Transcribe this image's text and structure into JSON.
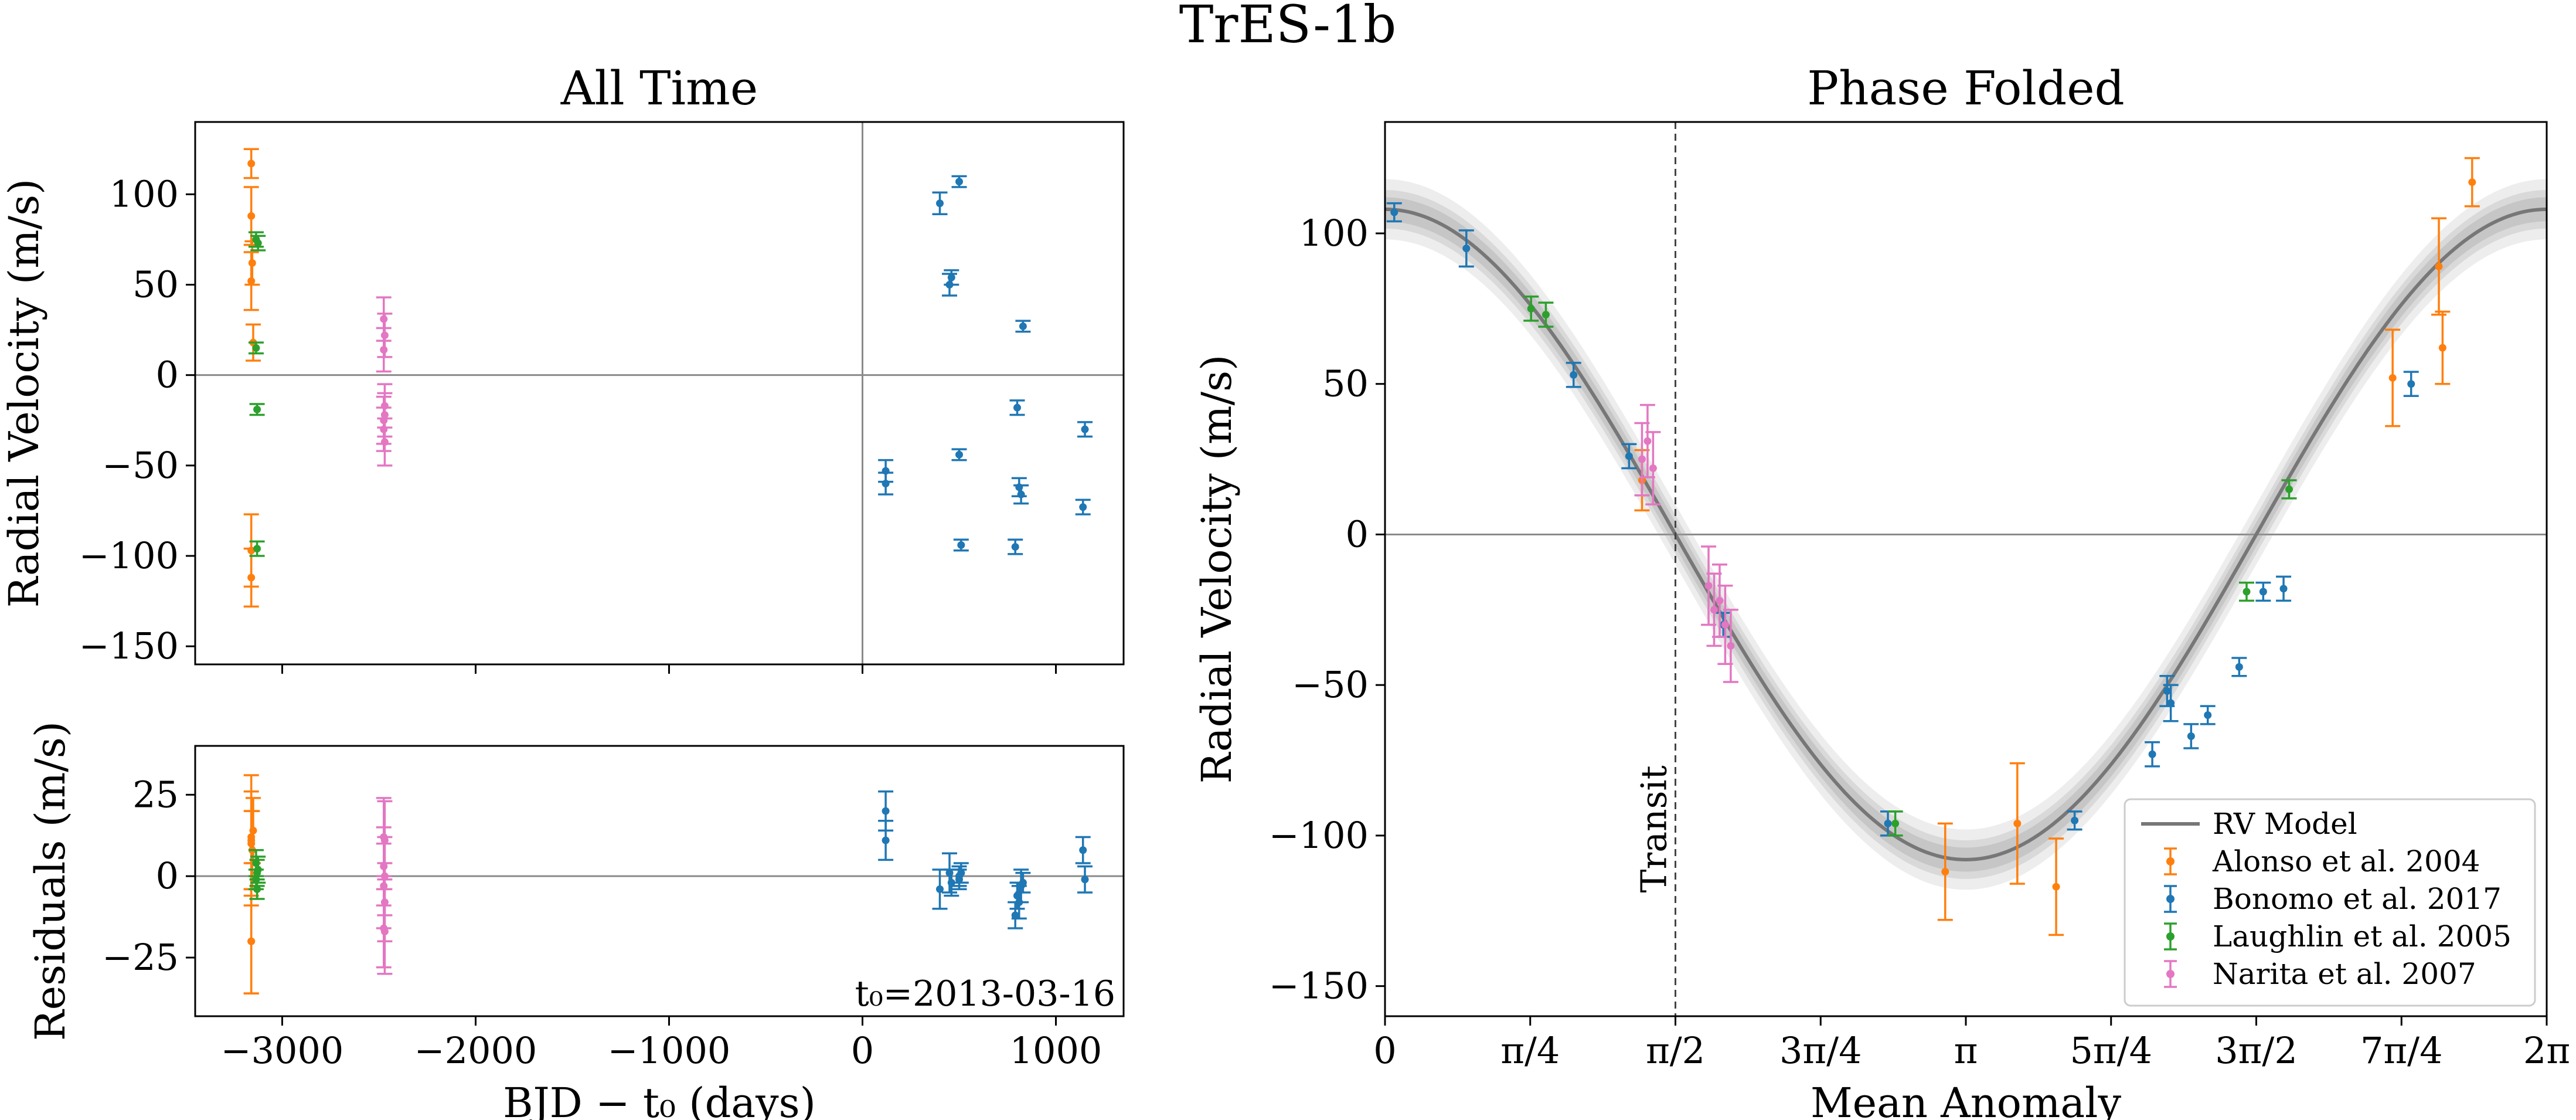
{
  "figure": {
    "title": "TrES-1b"
  },
  "colors": {
    "Alonso et al. 2004": "#ff7f0e",
    "Bonomo et al. 2017": "#1f77b4",
    "Laughlin et al. 2005": "#2ca02c",
    "Narita et al. 2007": "#e377c2",
    "model": "#777777",
    "zero_line": "#8a8a8a",
    "transit_line": "#444444"
  },
  "chart_data": [
    {
      "id": "all_time",
      "type": "scatter",
      "title": "All Time",
      "xlabel": "",
      "ylabel": "Radial Velocity (m/s)",
      "xlim": [
        -3450,
        1350
      ],
      "ylim": [
        -160,
        140
      ],
      "xticks": [
        -3000,
        -2000,
        -1000,
        0,
        1000
      ],
      "xtick_labels": [
        "",
        "",
        "",
        "",
        ""
      ],
      "yticks": [
        -150,
        -100,
        -50,
        0,
        50,
        100
      ],
      "ytick_labels": [
        "−150",
        "−100",
        "−50",
        "0",
        "50",
        "100"
      ],
      "hlines": [
        0
      ],
      "vlines": [
        0
      ],
      "series": [
        {
          "name": "Alonso et al. 2004",
          "x": [
            -3160,
            -3160,
            -3155,
            -3160,
            -3150,
            -3160,
            -3160
          ],
          "y": [
            117,
            88,
            62,
            52,
            18,
            -112,
            -97
          ],
          "yerr": [
            8,
            16,
            12,
            16,
            10,
            16,
            20
          ]
        },
        {
          "name": "Bonomo et al. 2017",
          "x": [
            120,
            120,
            400,
            450,
            460,
            500,
            500,
            510,
            790,
            800,
            810,
            820,
            830,
            1140,
            1150
          ],
          "y": [
            -53,
            -60,
            95,
            50,
            54,
            107,
            -44,
            -94,
            -95,
            -18,
            -62,
            -66,
            27,
            -73,
            -30
          ],
          "yerr": [
            6,
            6,
            6,
            6,
            4,
            3,
            3,
            3,
            4,
            4,
            5,
            5,
            3,
            4,
            4
          ]
        },
        {
          "name": "Laughlin et al. 2005",
          "x": [
            -3135,
            -3125,
            -3135,
            -3130,
            -3130
          ],
          "y": [
            75,
            73,
            15,
            -19,
            -96
          ],
          "yerr": [
            4,
            4,
            3,
            3,
            4
          ]
        },
        {
          "name": "Narita et al. 2007",
          "x": [
            -2475,
            -2470,
            -2475,
            -2470,
            -2475,
            -2470,
            -2475,
            -2470
          ],
          "y": [
            31,
            22,
            14,
            -17,
            -25,
            -22,
            -30,
            -37
          ],
          "yerr": [
            12,
            12,
            12,
            12,
            13,
            12,
            12,
            13
          ]
        }
      ]
    },
    {
      "id": "residuals",
      "type": "scatter",
      "title": "",
      "xlabel": "BJD − t₀ (days)",
      "ylabel": "Residuals (m/s)",
      "xlim": [
        -3450,
        1350
      ],
      "ylim": [
        -43,
        40
      ],
      "xticks": [
        -3000,
        -2000,
        -1000,
        0,
        1000
      ],
      "xtick_labels": [
        "−3000",
        "−2000",
        "−1000",
        "0",
        "1000"
      ],
      "yticks": [
        -25,
        0,
        25
      ],
      "ytick_labels": [
        "−25",
        "0",
        "25"
      ],
      "hlines": [
        0
      ],
      "annotation": "t₀=2013-03-16",
      "series": [
        {
          "name": "Alonso et al. 2004",
          "x": [
            -3160,
            -3160,
            -3155,
            -3160,
            -3150,
            -3160,
            -3160
          ],
          "y": [
            12,
            10,
            8,
            -20,
            14,
            -20,
            11
          ],
          "yerr": [
            8,
            16,
            12,
            16,
            10,
            16,
            20
          ]
        },
        {
          "name": "Bonomo et al. 2017",
          "x": [
            120,
            120,
            400,
            450,
            460,
            500,
            500,
            510,
            790,
            800,
            810,
            820,
            830,
            1140,
            1150
          ],
          "y": [
            20,
            11,
            -4,
            1,
            -2,
            -1,
            0,
            1,
            -12,
            -6,
            -8,
            -3,
            -2,
            8,
            -1
          ],
          "yerr": [
            6,
            6,
            6,
            6,
            4,
            3,
            3,
            3,
            4,
            4,
            5,
            5,
            3,
            4,
            4
          ]
        },
        {
          "name": "Laughlin et al. 2005",
          "x": [
            -3135,
            -3125,
            -3135,
            -3130,
            -3130
          ],
          "y": [
            4,
            2,
            -1,
            -4,
            1
          ],
          "yerr": [
            4,
            4,
            3,
            3,
            4
          ]
        },
        {
          "name": "Narita et al. 2007",
          "x": [
            -2475,
            -2470,
            -2475,
            -2470,
            -2475,
            -2470,
            -2475,
            -2470
          ],
          "y": [
            12,
            11,
            3,
            0,
            -3,
            -8,
            -16,
            -17
          ],
          "yerr": [
            12,
            12,
            12,
            12,
            13,
            12,
            12,
            13
          ]
        }
      ]
    },
    {
      "id": "phase_folded",
      "type": "scatter",
      "title": "Phase Folded",
      "xlabel": "Mean Anomaly",
      "ylabel": "Radial Velocity (m/s)",
      "xlim": [
        0,
        6.2832
      ],
      "ylim": [
        -160,
        137
      ],
      "xticks": [
        0,
        0.7854,
        1.5708,
        2.3562,
        3.1416,
        3.927,
        4.7124,
        5.4978,
        6.2832
      ],
      "xtick_labels": [
        "0",
        "π/4",
        "π/2",
        "3π/4",
        "π",
        "5π/4",
        "3π/2",
        "7π/4",
        "2π"
      ],
      "yticks": [
        -150,
        -100,
        -50,
        0,
        50,
        100
      ],
      "ytick_labels": [
        "−150",
        "−100",
        "−50",
        "0",
        "50",
        "100"
      ],
      "hlines": [
        0
      ],
      "transit": {
        "x": 1.5708,
        "label": "Transit"
      },
      "model": {
        "name": "RV Model",
        "amplitude": 108,
        "band": 4
      },
      "legend": {
        "position": "lower right"
      },
      "series": [
        {
          "name": "Alonso et al. 2004",
          "x": [
            5.88,
            5.45,
            5.7,
            5.72,
            1.39,
            3.03,
            3.42,
            3.63
          ],
          "y": [
            117,
            52,
            89,
            62,
            18,
            -112,
            -96,
            -117
          ],
          "yerr": [
            8,
            16,
            16,
            12,
            10,
            16,
            20,
            16
          ]
        },
        {
          "name": "Bonomo et al. 2017",
          "x": [
            0.05,
            0.44,
            1.02,
            1.32,
            1.83,
            2.72,
            3.73,
            4.15,
            4.23,
            4.25,
            4.36,
            4.45,
            4.62,
            4.75,
            4.86,
            5.55
          ],
          "y": [
            107,
            95,
            53,
            26,
            -30,
            -96,
            -95,
            -73,
            -52,
            -56,
            -67,
            -60,
            -44,
            -19,
            -18,
            50
          ],
          "yerr": [
            3,
            6,
            4,
            4,
            4,
            4,
            3,
            4,
            5,
            6,
            4,
            3,
            3,
            3,
            4,
            4
          ]
        },
        {
          "name": "Laughlin et al. 2005",
          "x": [
            0.79,
            0.87,
            2.76,
            4.66,
            4.89
          ],
          "y": [
            75,
            73,
            -96,
            -19,
            15
          ],
          "yerr": [
            4,
            4,
            4,
            3,
            3
          ]
        },
        {
          "name": "Narita et al. 2007",
          "x": [
            1.39,
            1.42,
            1.45,
            1.75,
            1.78,
            1.81,
            1.84,
            1.87
          ],
          "y": [
            25,
            31,
            22,
            -17,
            -25,
            -22,
            -30,
            -37
          ],
          "yerr": [
            12,
            12,
            12,
            13,
            12,
            12,
            13,
            12
          ]
        }
      ]
    }
  ]
}
